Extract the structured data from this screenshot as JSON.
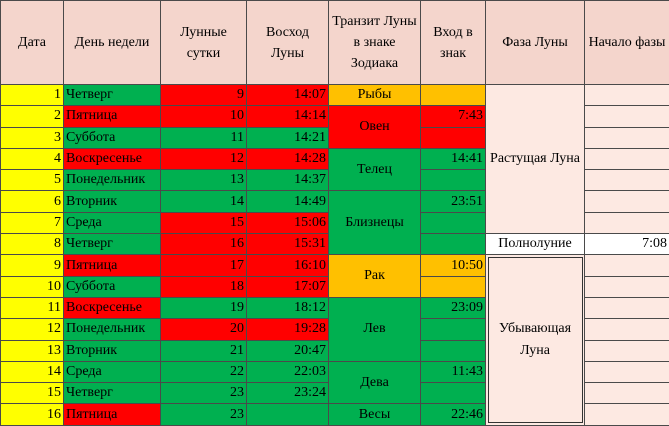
{
  "headers": {
    "date": "Дата",
    "weekday": "День недели",
    "lunar_day": "Лунные сутки",
    "moonrise": "Восход Луны",
    "transit": "Транзит Луны в знаке Зодиака",
    "entry": "Вход в знак",
    "phase": "Фаза Луны",
    "phase_start": "Начало фазы"
  },
  "rows": [
    {
      "date": "1",
      "weekday": "Четверг",
      "lunar_day": "9",
      "moonrise": "14:07",
      "entry": ""
    },
    {
      "date": "2",
      "weekday": "Пятница",
      "lunar_day": "10",
      "moonrise": "14:14",
      "entry": "7:43"
    },
    {
      "date": "3",
      "weekday": "Суббота",
      "lunar_day": "11",
      "moonrise": "14:21",
      "entry": ""
    },
    {
      "date": "4",
      "weekday": "Воскресенье",
      "lunar_day": "12",
      "moonrise": "14:28",
      "entry": "14:41"
    },
    {
      "date": "5",
      "weekday": "Понедельник",
      "lunar_day": "13",
      "moonrise": "14:37",
      "entry": ""
    },
    {
      "date": "6",
      "weekday": "Вторник",
      "lunar_day": "14",
      "moonrise": "14:49",
      "entry": "23:51"
    },
    {
      "date": "7",
      "weekday": "Среда",
      "lunar_day": "15",
      "moonrise": "15:06",
      "entry": ""
    },
    {
      "date": "8",
      "weekday": "Четверг",
      "lunar_day": "16",
      "moonrise": "15:31",
      "entry": ""
    },
    {
      "date": "9",
      "weekday": "Пятница",
      "lunar_day": "17",
      "moonrise": "16:10",
      "entry": "10:50"
    },
    {
      "date": "10",
      "weekday": "Суббота",
      "lunar_day": "18",
      "moonrise": "17:07",
      "entry": ""
    },
    {
      "date": "11",
      "weekday": "Воскресенье",
      "lunar_day": "19",
      "moonrise": "18:12",
      "entry": "23:09"
    },
    {
      "date": "12",
      "weekday": "Понедельник",
      "lunar_day": "20",
      "moonrise": "19:28",
      "entry": ""
    },
    {
      "date": "13",
      "weekday": "Вторник",
      "lunar_day": "21",
      "moonrise": "20:47",
      "entry": ""
    },
    {
      "date": "14",
      "weekday": "Среда",
      "lunar_day": "22",
      "moonrise": "22:03",
      "entry": "11:43"
    },
    {
      "date": "15",
      "weekday": "Четверг",
      "lunar_day": "23",
      "moonrise": "23:24",
      "entry": ""
    },
    {
      "date": "16",
      "weekday": "Пятница",
      "lunar_day": "23",
      "moonrise": "",
      "entry": "22:46"
    }
  ],
  "signs": [
    "Рыбы",
    "Овен",
    "Телец",
    "Близнецы",
    "Рак",
    "Лев",
    "Дева",
    "Весы"
  ],
  "phases": {
    "waxing": "Растущая Луна",
    "full_moon": "Полнолуние",
    "full_moon_time": "7:08",
    "waning": "Убывающая Луна"
  },
  "colors": {
    "red": "#ff0000",
    "green": "#00b050",
    "yellow": "#ffff00",
    "orange": "#ffc000",
    "header_bg": "#f4d5cc",
    "phase_bg": "#fde9e2"
  }
}
